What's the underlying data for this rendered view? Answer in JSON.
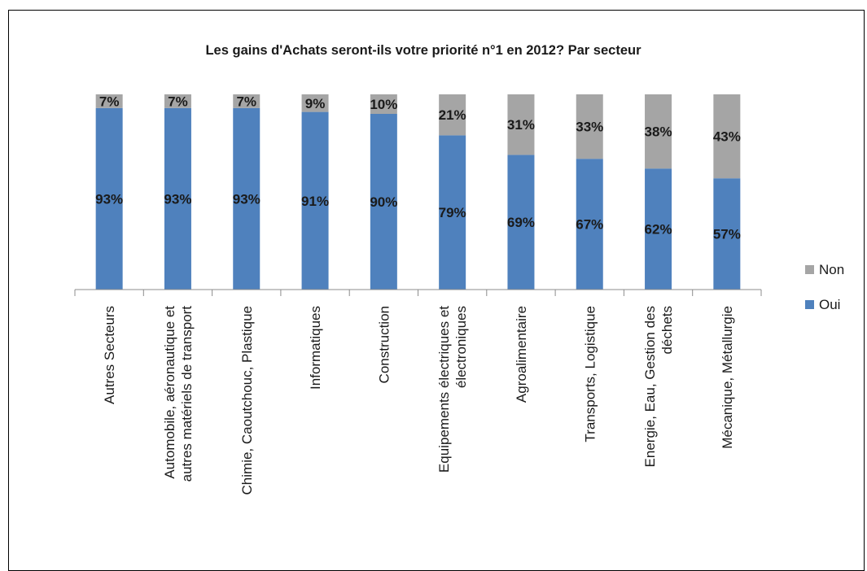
{
  "chart_data": {
    "type": "bar",
    "stacked": true,
    "title": "Les gains d'Achats seront-ils votre priorité n°1 en 2012?  Par secteur",
    "categories": [
      [
        "Autres Secteurs"
      ],
      [
        "Automobile, aéronautique et",
        "autres matériels de transport"
      ],
      [
        "Chimie, Caoutchouc, Plastique"
      ],
      [
        "Informatiques"
      ],
      [
        "Construction"
      ],
      [
        "Equipements électriques et",
        "électroniques"
      ],
      [
        "Agroalimentaire"
      ],
      [
        "Transports, Logistique"
      ],
      [
        "Energie, Eau, Gestion des",
        "déchets"
      ],
      [
        "Mécanique, Métallurgie"
      ]
    ],
    "series": [
      {
        "name": "Oui",
        "color": "#4f81bd",
        "values": [
          93,
          93,
          93,
          91,
          90,
          79,
          69,
          67,
          62,
          57
        ],
        "labels": [
          "93%",
          "93%",
          "93%",
          "91%",
          "90%",
          "79%",
          "69%",
          "67%",
          "62%",
          "57%"
        ]
      },
      {
        "name": "Non",
        "color": "#a5a5a5",
        "values": [
          7,
          7,
          7,
          9,
          10,
          21,
          31,
          33,
          38,
          43
        ],
        "labels": [
          "7%",
          "7%",
          "7%",
          "9%",
          "10%",
          "21%",
          "31%",
          "33%",
          "38%",
          "43%"
        ]
      }
    ],
    "ylim": [
      0,
      100
    ],
    "grid": false,
    "legend": "right",
    "legend_entries": [
      {
        "name": "Non",
        "color": "#a5a5a5"
      },
      {
        "name": "Oui",
        "color": "#4f81bd"
      }
    ]
  }
}
